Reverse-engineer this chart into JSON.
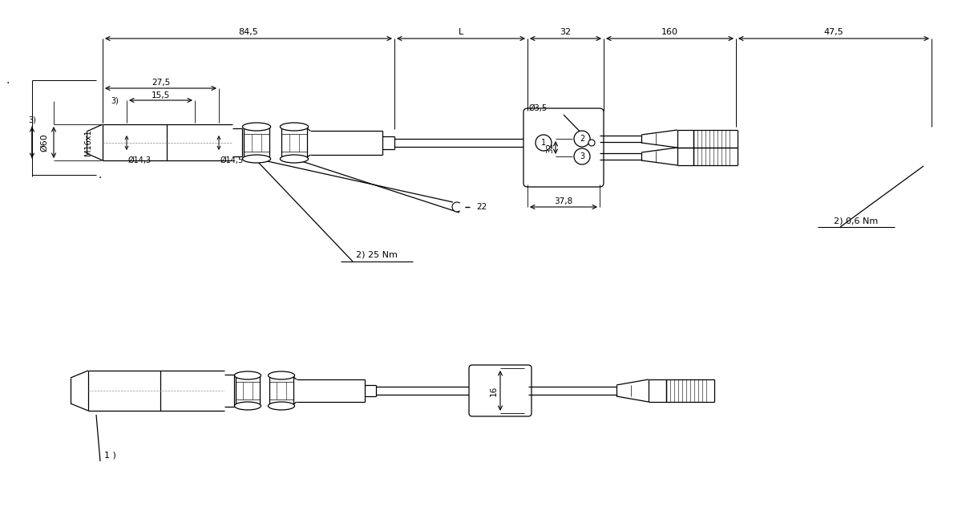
{
  "bg": "#ffffff",
  "lc": "#000000",
  "fig_w": 12.0,
  "fig_h": 6.47,
  "dpi": 100,
  "labels": {
    "d84": "84,5",
    "dL": "L",
    "d32": "32",
    "d160": "160",
    "d47": "47,5",
    "d27": "27,5",
    "d15": "15,5",
    "dphi60": "Ø60",
    "dM16": "M16x1",
    "dphi14a": "Ø14,3",
    "dphi14b": "Ø14,5",
    "d22": "22",
    "d25Nm": "2) 25 Nm",
    "d32v": "32",
    "dphi35": "Ø3,5",
    "d378": "37,8",
    "d06Nm": "2) 0,6 Nm",
    "d16": "16",
    "n3phi": "3) Ø60",
    "n315": "3) 15,5",
    "c1": "1",
    "c2": "2",
    "c3": "3",
    "ann1": "1 )"
  }
}
